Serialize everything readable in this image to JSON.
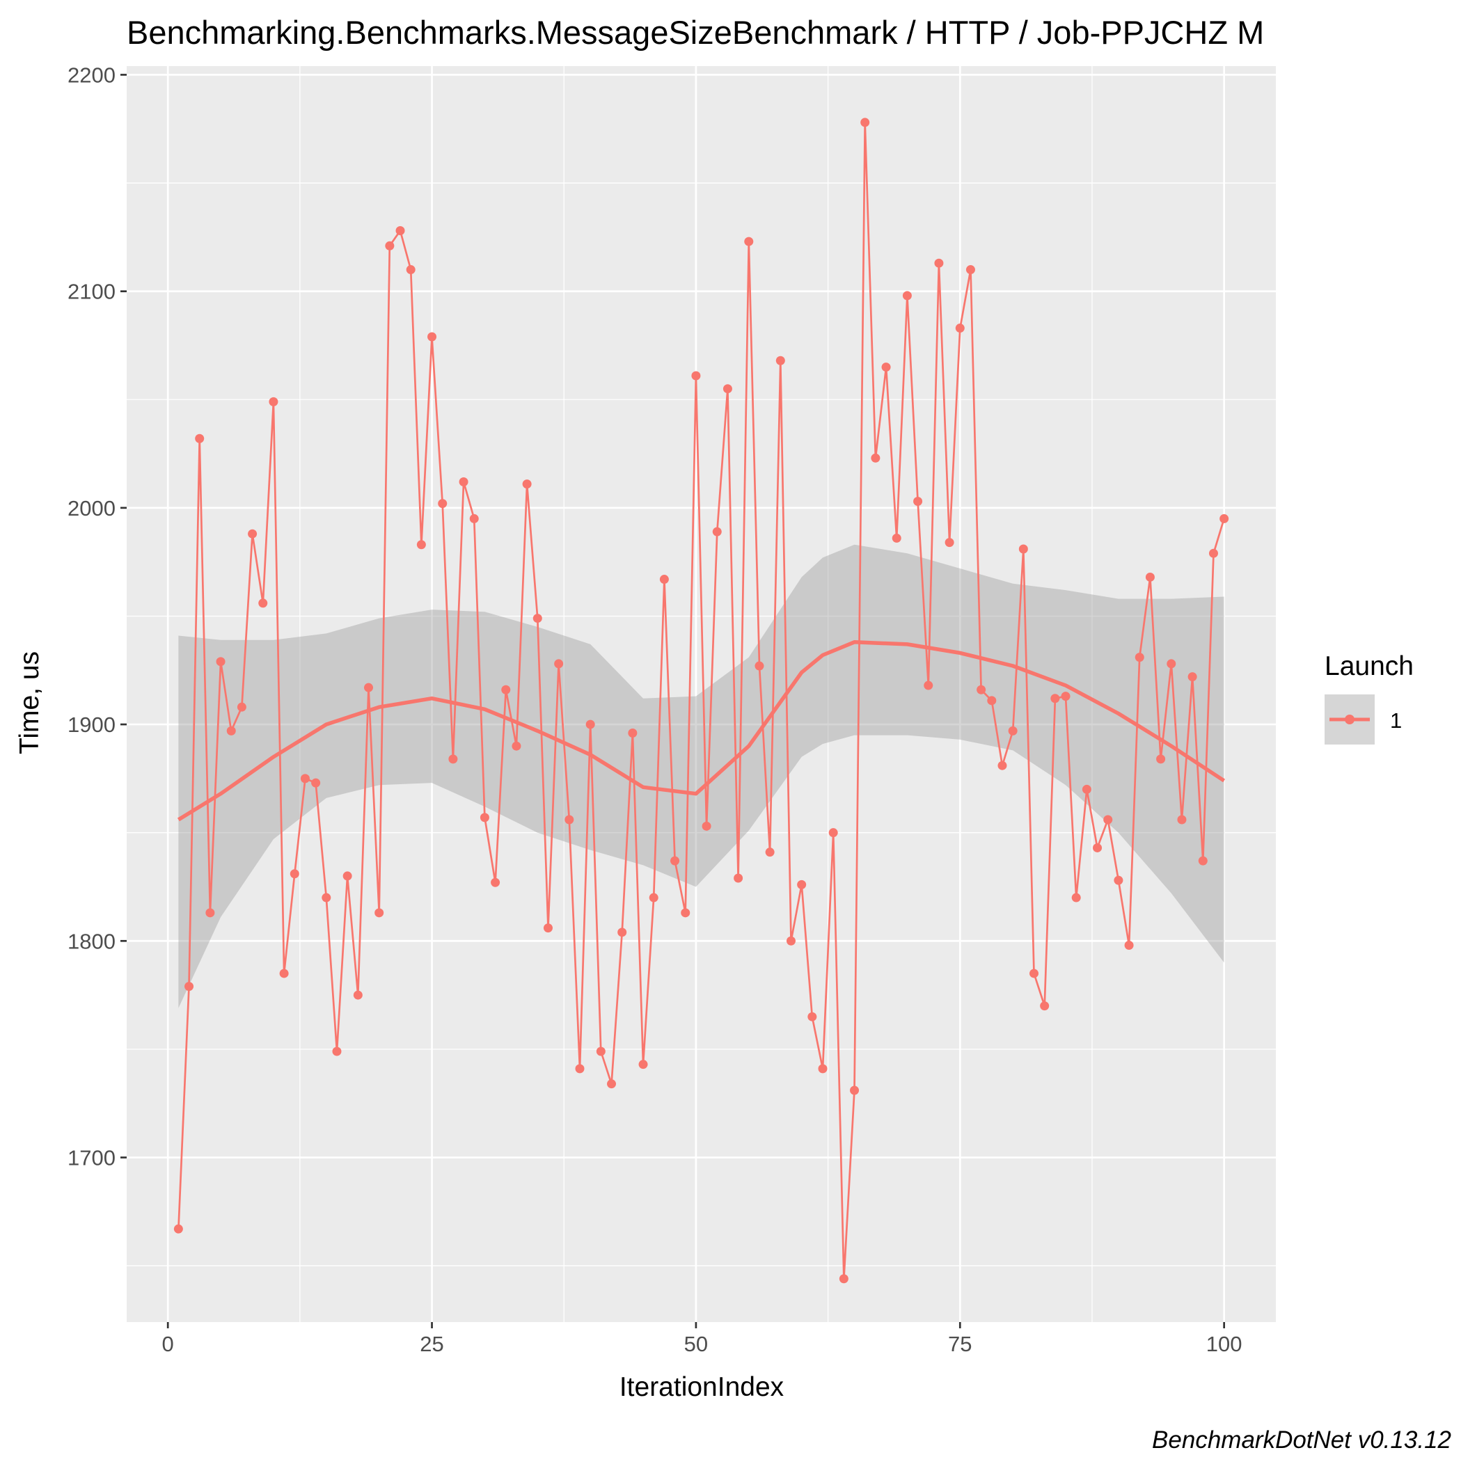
{
  "chart_data": {
    "type": "line",
    "title": "Benchmarking.Benchmarks.MessageSizeBenchmark / HTTP / Job-PPJCHZ M",
    "xlabel": "IterationIndex",
    "ylabel": "Time, us",
    "caption": "BenchmarkDotNet v0.13.12",
    "xlim": [
      -3.9,
      104.9
    ],
    "ylim": [
      1624,
      2204
    ],
    "x_ticks": [
      0,
      25,
      50,
      75,
      100
    ],
    "x_tick_labels": [
      "0",
      "25",
      "50",
      "75",
      "100"
    ],
    "y_ticks": [
      1700,
      1800,
      1900,
      2000,
      2100,
      2200
    ],
    "y_tick_labels": [
      "1700",
      "1800",
      "1900",
      "2000",
      "2100",
      "2200"
    ],
    "grid": true,
    "legend": {
      "title": "Launch",
      "position": "right",
      "entries": [
        "1"
      ]
    },
    "colors": {
      "series": "#f8766d",
      "band": "#999999",
      "panel": "#ebebeb",
      "grid": "#ffffff"
    },
    "series": [
      {
        "name": "1",
        "x": [
          1,
          2,
          3,
          4,
          5,
          6,
          7,
          8,
          9,
          10,
          11,
          12,
          13,
          14,
          15,
          16,
          17,
          18,
          19,
          20,
          21,
          22,
          23,
          24,
          25,
          26,
          27,
          28,
          29,
          30,
          31,
          32,
          33,
          34,
          35,
          36,
          37,
          38,
          39,
          40,
          41,
          42,
          43,
          44,
          45,
          46,
          47,
          48,
          49,
          50,
          51,
          52,
          53,
          54,
          55,
          56,
          57,
          58,
          59,
          60,
          61,
          62,
          63,
          64,
          65,
          66,
          67,
          68,
          69,
          70,
          71,
          72,
          73,
          74,
          75,
          76,
          77,
          78,
          79,
          80,
          81,
          82,
          83,
          84,
          85,
          86,
          87,
          88,
          89,
          90,
          91,
          92,
          93,
          94,
          95,
          96,
          97,
          98,
          99,
          100
        ],
        "values": [
          1667,
          1779,
          2032,
          1813,
          1929,
          1897,
          1908,
          1988,
          1956,
          2049,
          1785,
          1831,
          1875,
          1873,
          1820,
          1749,
          1830,
          1775,
          1917,
          1813,
          2121,
          2128,
          2110,
          1983,
          2079,
          2002,
          1884,
          2012,
          1995,
          1857,
          1827,
          1916,
          1890,
          2011,
          1949,
          1806,
          1928,
          1856,
          1741,
          1900,
          1749,
          1734,
          1804,
          1896,
          1743,
          1820,
          1967,
          1837,
          1813,
          2061,
          1853,
          1989,
          2055,
          1829,
          2123,
          1927,
          1841,
          2068,
          1800,
          1826,
          1765,
          1741,
          1850,
          1644,
          1731,
          2178,
          2023,
          2065,
          1986,
          2098,
          2003,
          1918,
          2113,
          1984,
          2083,
          2110,
          1916,
          1911,
          1881,
          1897,
          1981,
          1785,
          1770,
          1912,
          1913,
          1820,
          1870,
          1843,
          1856,
          1828,
          1798,
          1931,
          1968,
          1884,
          1928,
          1856,
          1922,
          1837,
          1979,
          1995
        ]
      }
    ],
    "smooth": {
      "x": [
        1,
        5,
        10,
        15,
        20,
        25,
        30,
        35,
        40,
        45,
        50,
        55,
        60,
        62,
        65,
        70,
        75,
        80,
        85,
        90,
        95,
        100
      ],
      "y": [
        1856,
        1868,
        1885,
        1900,
        1908,
        1912,
        1907,
        1897,
        1886,
        1871,
        1868,
        1890,
        1924,
        1932,
        1938,
        1937,
        1933,
        1927,
        1918,
        1905,
        1890,
        1874
      ],
      "ymin": [
        1769,
        1811,
        1847,
        1866,
        1872,
        1873,
        1862,
        1850,
        1842,
        1835,
        1825,
        1851,
        1885,
        1891,
        1895,
        1895,
        1893,
        1888,
        1872,
        1850,
        1822,
        1790
      ],
      "ymax": [
        1941,
        1939,
        1939,
        1942,
        1949,
        1953,
        1952,
        1945,
        1937,
        1912,
        1913,
        1931,
        1968,
        1977,
        1983,
        1979,
        1972,
        1965,
        1962,
        1958,
        1958,
        1959
      ]
    }
  }
}
